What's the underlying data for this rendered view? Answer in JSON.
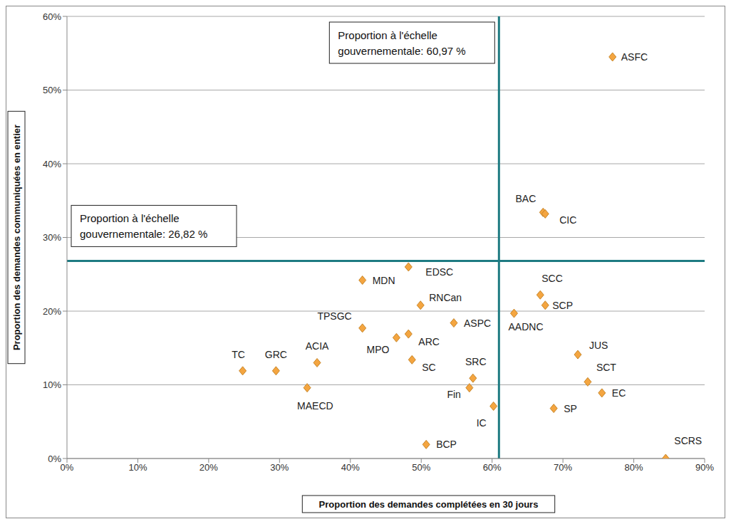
{
  "chart_data": {
    "type": "scatter",
    "x_label": "Proportion des demandes complétées en 30 jours",
    "y_label": "Proportion des demandes communiquées en entier",
    "labels": [
      "ASFC",
      "BAC",
      "CIC",
      "SCC",
      "SCP",
      "AADNC",
      "JUS",
      "SCT",
      "EC",
      "SP",
      "SCRS",
      "IC",
      "Fin",
      "SRC",
      "BCP",
      "ASPC",
      "RNCan",
      "EDSC",
      "MDN",
      "TPSGC",
      "MPO",
      "ARC",
      "SC",
      "ACIA",
      "MAECD",
      "GRC",
      "TC"
    ],
    "x": [
      77,
      67.2,
      67.5,
      66.8,
      67.5,
      63.1,
      72.1,
      73.5,
      75.5,
      68.7,
      84.5,
      60.2,
      56.8,
      57.3,
      50.7,
      54.6,
      49.9,
      48.2,
      41.7,
      41.7,
      46.5,
      48.2,
      48.7,
      35.3,
      33.9,
      29.5,
      24.8
    ],
    "values": [
      54.5,
      33.4,
      33.2,
      22.2,
      20.8,
      19.7,
      14.1,
      10.4,
      8.9,
      6.8,
      0,
      7.1,
      9.6,
      10.9,
      1.9,
      18.4,
      20.8,
      26.0,
      24.2,
      17.7,
      16.4,
      16.9,
      13.4,
      13.0,
      9.6,
      11.9,
      11.9
    ],
    "color": "#F4A540",
    "marker": "diamond",
    "xlim": [
      0,
      90
    ],
    "xticks": [
      {
        "value": 0,
        "label": "0%"
      },
      {
        "value": 10,
        "label": "10%"
      },
      {
        "value": 20,
        "label": "20%"
      },
      {
        "value": 30,
        "label": "30%"
      },
      {
        "value": 40,
        "label": "40%"
      },
      {
        "value": 50,
        "label": "50%"
      },
      {
        "value": 60,
        "label": "60%"
      },
      {
        "value": 70,
        "label": "70%"
      },
      {
        "value": 80,
        "label": "80%"
      },
      {
        "value": 90,
        "label": "90%"
      }
    ],
    "ylim": [
      0,
      60
    ],
    "yticks": [
      {
        "value": 0,
        "label": "0%"
      },
      {
        "value": 10,
        "label": "10%"
      },
      {
        "value": 20,
        "label": "20%"
      },
      {
        "value": 30,
        "label": "30%"
      },
      {
        "value": 40,
        "label": "40%"
      },
      {
        "value": 50,
        "label": "50%"
      },
      {
        "value": 60,
        "label": "60%"
      }
    ],
    "grid": true,
    "annotations": [
      {
        "axis": "x",
        "value": 60.97,
        "text": "Proportion à l'échelle gouvernementale: 60,97 %"
      },
      {
        "axis": "y",
        "value": 26.82,
        "text": "Proportion à l'échelle gouvernementale: 26,82 %"
      }
    ]
  }
}
